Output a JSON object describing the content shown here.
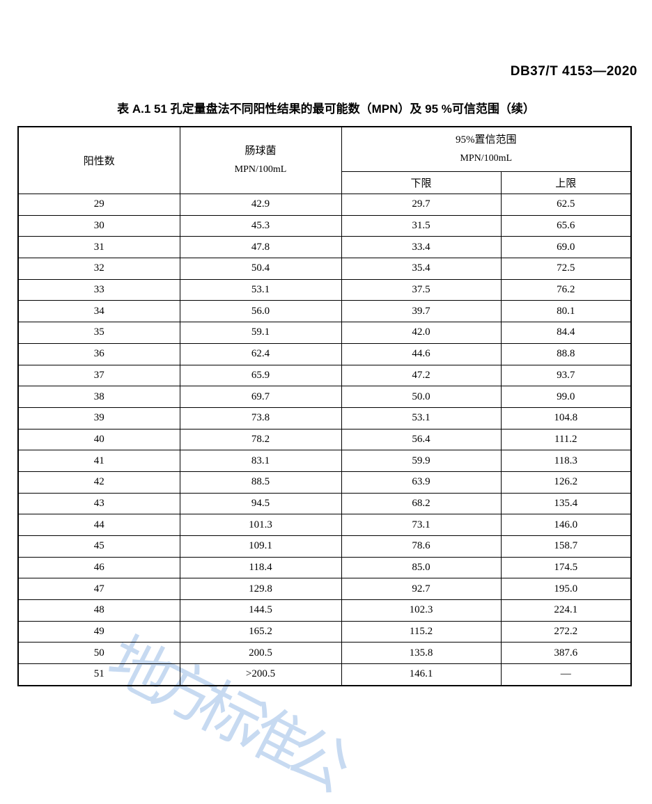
{
  "page": {
    "doc_number": "DB37/T 4153—2020",
    "title": "表 A.1  51 孔定量盘法不同阳性结果的最可能数（MPN）及 95 %可信范围（续）"
  },
  "watermark": {
    "text": "地方标准公",
    "color": "#7ba9e0"
  },
  "table": {
    "header": {
      "col_positive": "阳性数",
      "col_mpn_line1": "肠球菌",
      "col_mpn_line2": "MPN/100mL",
      "group_line1": "95%置信范围",
      "group_line2": "MPN/100mL",
      "sub_lower": "下限",
      "sub_upper": "上限"
    },
    "rows": [
      [
        "29",
        "42.9",
        "29.7",
        "62.5"
      ],
      [
        "30",
        "45.3",
        "31.5",
        "65.6"
      ],
      [
        "31",
        "47.8",
        "33.4",
        "69.0"
      ],
      [
        "32",
        "50.4",
        "35.4",
        "72.5"
      ],
      [
        "33",
        "53.1",
        "37.5",
        "76.2"
      ],
      [
        "34",
        "56.0",
        "39.7",
        "80.1"
      ],
      [
        "35",
        "59.1",
        "42.0",
        "84.4"
      ],
      [
        "36",
        "62.4",
        "44.6",
        "88.8"
      ],
      [
        "37",
        "65.9",
        "47.2",
        "93.7"
      ],
      [
        "38",
        "69.7",
        "50.0",
        "99.0"
      ],
      [
        "39",
        "73.8",
        "53.1",
        "104.8"
      ],
      [
        "40",
        "78.2",
        "56.4",
        "111.2"
      ],
      [
        "41",
        "83.1",
        "59.9",
        "118.3"
      ],
      [
        "42",
        "88.5",
        "63.9",
        "126.2"
      ],
      [
        "43",
        "94.5",
        "68.2",
        "135.4"
      ],
      [
        "44",
        "101.3",
        "73.1",
        "146.0"
      ],
      [
        "45",
        "109.1",
        "78.6",
        "158.7"
      ],
      [
        "46",
        "118.4",
        "85.0",
        "174.5"
      ],
      [
        "47",
        "129.8",
        "92.7",
        "195.0"
      ],
      [
        "48",
        "144.5",
        "102.3",
        "224.1"
      ],
      [
        "49",
        "165.2",
        "115.2",
        "272.2"
      ],
      [
        "50",
        "200.5",
        "135.8",
        "387.6"
      ],
      [
        "51",
        ">200.5",
        "146.1",
        "—"
      ]
    ]
  }
}
